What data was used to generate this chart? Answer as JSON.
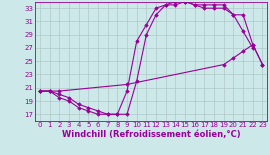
{
  "xlabel": "Windchill (Refroidissement éolien,°C)",
  "bg_color": "#cce8e8",
  "grid_color": "#b0c8c8",
  "line_color": "#990099",
  "xlim": [
    -0.5,
    23.5
  ],
  "ylim": [
    16,
    34
  ],
  "yticks": [
    17,
    19,
    21,
    23,
    25,
    27,
    29,
    31,
    33
  ],
  "xticks": [
    0,
    1,
    2,
    3,
    4,
    5,
    6,
    7,
    8,
    9,
    10,
    11,
    12,
    13,
    14,
    15,
    16,
    17,
    18,
    19,
    20,
    21,
    22,
    23
  ],
  "line1_x": [
    0,
    1,
    2,
    9,
    19,
    20,
    21,
    22,
    23
  ],
  "line1_y": [
    20.5,
    20.5,
    20.5,
    21.5,
    24.5,
    25.5,
    26.5,
    27.5,
    24.5
  ],
  "line2_x": [
    0,
    1,
    2,
    3,
    4,
    5,
    6,
    7,
    8,
    9,
    10,
    11,
    12,
    13,
    14,
    15,
    16,
    17,
    18,
    19,
    20,
    21,
    22
  ],
  "line2_y": [
    20.5,
    20.5,
    19.5,
    19.0,
    18.0,
    17.5,
    17.0,
    17.0,
    17.0,
    20.5,
    28.0,
    30.5,
    33.0,
    33.5,
    34.0,
    34.0,
    33.5,
    33.5,
    33.5,
    33.5,
    32.0,
    29.5,
    27.0
  ],
  "line3_x": [
    0,
    1,
    2,
    3,
    4,
    5,
    6,
    7,
    8,
    9,
    10,
    11,
    12,
    13,
    14,
    15,
    16,
    17,
    18,
    19,
    20,
    21,
    22,
    23
  ],
  "line3_y": [
    20.5,
    20.5,
    20.0,
    19.5,
    18.5,
    18.0,
    17.5,
    17.0,
    17.0,
    17.0,
    22.0,
    29.0,
    32.0,
    33.5,
    33.5,
    34.0,
    33.5,
    33.0,
    33.0,
    33.0,
    32.0,
    32.0,
    27.5,
    24.5
  ],
  "marker": "D",
  "markersize": 1.8,
  "linewidth": 0.8,
  "tick_fontsize": 5.0,
  "xlabel_fontsize": 6.0
}
